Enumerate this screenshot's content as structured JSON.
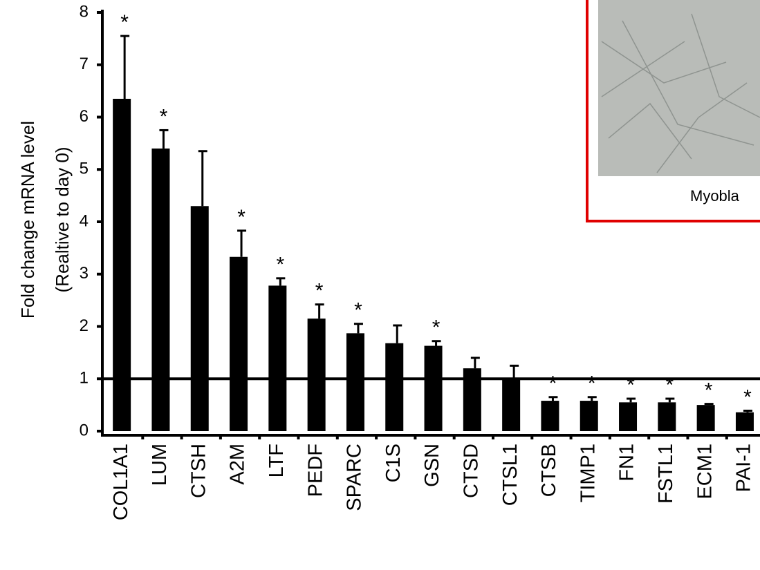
{
  "chart_data": {
    "type": "bar",
    "y_label_lines": [
      "Fold change mRNA level",
      "(Realtive to day 0)"
    ],
    "categories": [
      "COL1A1",
      "LUM",
      "CTSH",
      "A2M",
      "LTF",
      "PEDF",
      "SPARC",
      "C1S",
      "GSN",
      "CTSD",
      "CTSL1",
      "CTSB",
      "TIMP1",
      "FN1",
      "FSTL1",
      "ECM1",
      "PAI-1"
    ],
    "values": [
      6.35,
      5.4,
      4.3,
      3.33,
      2.78,
      2.15,
      1.87,
      1.68,
      1.63,
      1.2,
      1.0,
      0.58,
      0.58,
      0.55,
      0.55,
      0.5,
      0.36
    ],
    "errors": [
      1.2,
      0.35,
      1.05,
      0.5,
      0.14,
      0.27,
      0.18,
      0.34,
      0.09,
      0.2,
      0.25,
      0.07,
      0.07,
      0.07,
      0.07,
      0.02,
      0.03
    ],
    "significance": [
      "*",
      "*",
      null,
      "*",
      "*",
      "*",
      "*",
      null,
      "*",
      null,
      null,
      "*",
      "*",
      "*",
      "*",
      "*",
      "*"
    ],
    "color": "#000000",
    "reference_line": 1,
    "ylim": [
      0,
      8
    ],
    "yticks": [
      0,
      1,
      2,
      3,
      4,
      5,
      6,
      7,
      8
    ]
  },
  "inset": {
    "caption": "Myobla"
  }
}
